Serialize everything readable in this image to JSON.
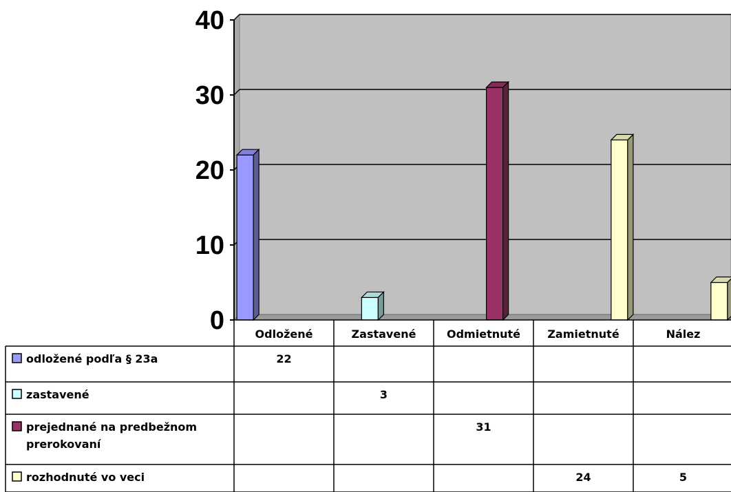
{
  "chart_data": {
    "type": "bar",
    "three_d": true,
    "categories": [
      "Odložené",
      "Zastavené",
      "Odmietnuté",
      "Zamietnuté",
      "Nález"
    ],
    "ylim": [
      0,
      40
    ],
    "yticks": [
      0,
      10,
      20,
      30,
      40
    ],
    "grid": true,
    "plot_background": "#c0c0c0",
    "legend": "data-table-below",
    "series": [
      {
        "name": "odložené podľa § 23a",
        "label_lines": [
          "odložené podľa § 23a"
        ],
        "color": "#9999ff",
        "values": [
          22,
          null,
          null,
          null,
          null
        ]
      },
      {
        "name": "zastavené",
        "label_lines": [
          "zastavené"
        ],
        "color": "#ccffff",
        "values": [
          null,
          3,
          null,
          null,
          null
        ]
      },
      {
        "name": "prejednané na predbežnom prerokovaní",
        "label_lines": [
          "prejednané na predbežnom",
          "prerokovaní"
        ],
        "color": "#993366",
        "values": [
          null,
          null,
          31,
          null,
          null
        ]
      },
      {
        "name": "rozhodnuté vo veci",
        "label_lines": [
          "rozhodnuté vo veci"
        ],
        "color": "#ffffcc",
        "values": [
          null,
          null,
          null,
          24,
          5
        ]
      }
    ]
  }
}
